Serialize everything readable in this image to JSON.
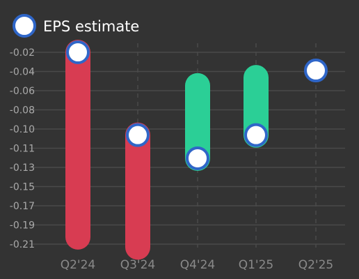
{
  "chart_data": {
    "type": "bar",
    "subtype": "floating-range-with-markers",
    "categories": [
      "Q2'24",
      "Q3'24",
      "Q4'24",
      "Q1'25",
      "Q2'25"
    ],
    "y_ticks": [
      "-0.02",
      "-0.04",
      "-0.06",
      "-0.08",
      "-0.10",
      "-0.11",
      "-0.13",
      "-0.15",
      "-0.17",
      "-0.19",
      "-0.21"
    ],
    "ylim": [
      -0.217,
      -0.012
    ],
    "grid": true,
    "legend": {
      "position": "top-left",
      "entries": [
        "EPS estimate"
      ]
    },
    "series": [
      {
        "name": "EPS estimate",
        "values": [
          -0.02,
          -0.102,
          -0.125,
          -0.102,
          -0.038
        ]
      }
    ],
    "ranges": [
      {
        "category": "Q2'24",
        "from": -0.02,
        "to": -0.203,
        "direction": "down"
      },
      {
        "category": "Q3'24",
        "from": -0.102,
        "to": -0.213,
        "direction": "down"
      },
      {
        "category": "Q4'24",
        "from": -0.125,
        "to": -0.053,
        "direction": "up"
      },
      {
        "category": "Q1'25",
        "from": -0.102,
        "to": -0.045,
        "direction": "up"
      },
      {
        "category": "Q2'25",
        "from": null,
        "to": null,
        "direction": "none"
      }
    ],
    "colors": {
      "background": "#333333",
      "down": "#d83c52",
      "up": "#2bcf96",
      "marker_fill": "#ffffff",
      "marker_stroke": "#2f66c8",
      "grid": "#4a4a4a",
      "ticks": "#aaaaaa",
      "categories": "#8a8a8a"
    }
  }
}
